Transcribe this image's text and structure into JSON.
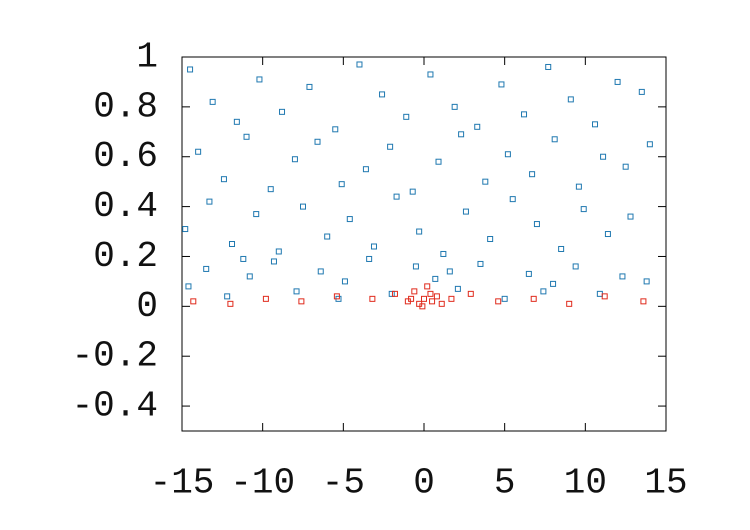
{
  "chart_data": {
    "type": "scatter",
    "xlim": [
      -15,
      15
    ],
    "ylim": [
      -0.5,
      1
    ],
    "xticks": [
      -15,
      -10,
      -5,
      0,
      5,
      10,
      15
    ],
    "yticks": [
      -0.4,
      -0.2,
      0,
      0.2,
      0.4,
      0.6,
      0.8,
      1
    ],
    "series": [
      {
        "color": "#1f78b0",
        "x": [
          -14.5,
          -13.1,
          -11.6,
          -10.2,
          -8.8,
          -7.1,
          -5.5,
          -4.0,
          -2.6,
          -1.1,
          0.4,
          1.9,
          3.3,
          4.8,
          6.2,
          7.7,
          9.1,
          10.6,
          12.0,
          13.5,
          -14.0,
          -12.4,
          -11.0,
          -9.5,
          -8.0,
          -6.6,
          -5.1,
          -3.6,
          -2.1,
          -0.7,
          0.9,
          2.3,
          3.8,
          5.2,
          6.7,
          8.1,
          9.6,
          11.1,
          12.5,
          14.0,
          -14.8,
          -13.3,
          -11.9,
          -10.4,
          -9.0,
          -7.5,
          -6.0,
          -4.6,
          -3.1,
          -1.7,
          -0.3,
          1.2,
          2.6,
          4.1,
          5.5,
          7.0,
          8.5,
          9.9,
          11.4,
          12.8,
          -14.6,
          -13.5,
          -12.2,
          -10.8,
          -9.3,
          -7.9,
          -6.4,
          -4.9,
          -3.4,
          -2.0,
          -0.5,
          0.7,
          2.1,
          3.5,
          5.0,
          6.5,
          8.0,
          9.4,
          10.9,
          12.3,
          13.8,
          -11.2,
          -5.3,
          1.6,
          7.4
        ],
        "values": [
          0.95,
          0.82,
          0.74,
          0.91,
          0.78,
          0.88,
          0.71,
          0.97,
          0.85,
          0.76,
          0.93,
          0.8,
          0.72,
          0.89,
          0.77,
          0.96,
          0.83,
          0.73,
          0.9,
          0.86,
          0.62,
          0.51,
          0.68,
          0.47,
          0.59,
          0.66,
          0.49,
          0.55,
          0.64,
          0.46,
          0.58,
          0.69,
          0.5,
          0.61,
          0.53,
          0.67,
          0.48,
          0.6,
          0.56,
          0.65,
          0.31,
          0.42,
          0.25,
          0.37,
          0.22,
          0.4,
          0.28,
          0.35,
          0.24,
          0.44,
          0.3,
          0.21,
          0.38,
          0.27,
          0.43,
          0.33,
          0.23,
          0.39,
          0.29,
          0.36,
          0.08,
          0.15,
          0.04,
          0.12,
          0.18,
          0.06,
          0.14,
          0.1,
          0.19,
          0.05,
          0.16,
          0.11,
          0.07,
          0.17,
          0.03,
          0.13,
          0.09,
          0.16,
          0.05,
          0.12,
          0.1,
          0.19,
          0.03,
          0.14,
          0.06
        ]
      },
      {
        "color": "#e02a1c",
        "x": [
          -14.3,
          -12.0,
          -9.8,
          -7.6,
          -5.4,
          -3.2,
          -1.8,
          -1.0,
          -0.6,
          -0.3,
          0,
          0.2,
          0.5,
          0.8,
          1.1,
          1.7,
          2.9,
          4.6,
          6.8,
          9.0,
          11.2,
          13.6,
          -0.1,
          0.4,
          -0.8
        ],
        "values": [
          0.02,
          0.01,
          0.03,
          0.02,
          0.04,
          0.03,
          0.05,
          0.02,
          0.06,
          0.01,
          0.03,
          0.08,
          0.02,
          0.04,
          0.01,
          0.03,
          0.05,
          0.02,
          0.03,
          0.01,
          0.04,
          0.02,
          0,
          0.05,
          0.03
        ]
      }
    ]
  }
}
